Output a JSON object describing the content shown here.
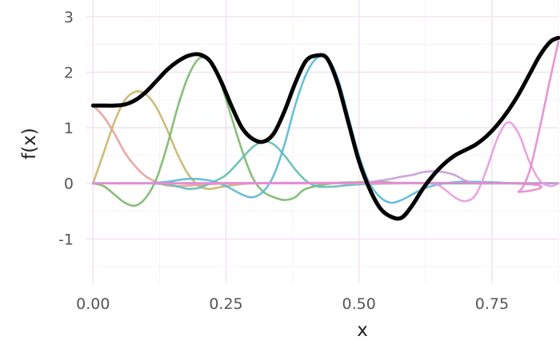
{
  "chart_data": {
    "type": "line",
    "xlabel": "x",
    "ylabel": "f(x)",
    "xlim": [
      -0.0125,
      0.875
    ],
    "ylim": [
      -1.8,
      3.3
    ],
    "x_ticks": [
      0,
      0.25,
      0.5,
      0.75
    ],
    "x_tick_labels": [
      "0.00",
      "0.25",
      "0.50",
      "0.75"
    ],
    "y_ticks": [
      -1,
      0,
      1,
      2,
      3
    ],
    "y_tick_labels": [
      "-1",
      "0",
      "1",
      "2",
      "3"
    ],
    "grid": true,
    "legend": "none",
    "series": [
      {
        "color": "#e8a09a",
        "x": [
          0,
          0.02,
          0.04,
          0.06,
          0.08,
          0.1,
          0.12,
          0.14,
          0.16,
          0.2,
          0.25,
          0.3,
          0.4,
          0.6,
          0.875
        ],
        "y": [
          1.4,
          1.2,
          0.9,
          0.55,
          0.3,
          0.12,
          0.02,
          -0.04,
          -0.05,
          -0.03,
          0.0,
          0.0,
          0.0,
          0.0,
          0.0
        ]
      },
      {
        "color": "#c9b56a",
        "x": [
          0,
          0.02,
          0.04,
          0.06,
          0.08,
          0.1,
          0.12,
          0.14,
          0.16,
          0.18,
          0.2,
          0.22,
          0.25,
          0.3,
          0.4,
          0.875
        ],
        "y": [
          0.0,
          0.55,
          1.1,
          1.5,
          1.65,
          1.6,
          1.35,
          0.95,
          0.5,
          0.15,
          -0.05,
          -0.1,
          -0.05,
          0.0,
          0.0,
          0.0
        ]
      },
      {
        "color": "#7ab86a",
        "x": [
          0,
          0.02,
          0.04,
          0.06,
          0.08,
          0.1,
          0.12,
          0.14,
          0.16,
          0.18,
          0.2,
          0.22,
          0.24,
          0.26,
          0.28,
          0.3,
          0.32,
          0.34,
          0.36,
          0.38,
          0.4,
          0.45,
          0.5,
          0.55,
          0.6,
          0.875
        ],
        "y": [
          0.0,
          -0.05,
          -0.2,
          -0.35,
          -0.4,
          -0.25,
          0.1,
          0.7,
          1.4,
          1.95,
          2.25,
          2.2,
          1.8,
          1.2,
          0.6,
          0.1,
          -0.15,
          -0.25,
          -0.3,
          -0.25,
          -0.1,
          0.0,
          0.02,
          0.02,
          0.0,
          0.0
        ]
      },
      {
        "color": "#5fbfb0",
        "x": [
          0,
          0.1,
          0.14,
          0.16,
          0.18,
          0.2,
          0.22,
          0.25,
          0.28,
          0.3,
          0.32,
          0.34,
          0.36,
          0.38,
          0.4,
          0.42,
          0.45,
          0.5,
          0.6,
          0.875
        ],
        "y": [
          0.0,
          0.0,
          -0.02,
          -0.06,
          -0.1,
          -0.08,
          0.0,
          0.15,
          0.45,
          0.65,
          0.75,
          0.7,
          0.5,
          0.25,
          0.05,
          -0.05,
          -0.06,
          -0.02,
          0.0,
          0.0
        ]
      },
      {
        "color": "#5ab8d6",
        "x": [
          0,
          0.1,
          0.14,
          0.18,
          0.22,
          0.25,
          0.28,
          0.3,
          0.32,
          0.34,
          0.36,
          0.38,
          0.4,
          0.42,
          0.44,
          0.46,
          0.48,
          0.5,
          0.52,
          0.54,
          0.56,
          0.58,
          0.6,
          0.62,
          0.64,
          0.66,
          0.68,
          0.7,
          0.75,
          0.8,
          0.875
        ],
        "y": [
          0.0,
          0.0,
          0.03,
          0.08,
          0.05,
          -0.05,
          -0.2,
          -0.25,
          -0.15,
          0.15,
          0.7,
          1.4,
          1.95,
          2.25,
          2.25,
          1.9,
          1.2,
          0.5,
          0.0,
          -0.25,
          -0.35,
          -0.3,
          -0.2,
          -0.1,
          -0.04,
          0.0,
          0.02,
          0.03,
          0.02,
          0.0,
          0.0
        ]
      },
      {
        "color": "#c89ad8",
        "x": [
          0,
          0.5,
          0.52,
          0.54,
          0.56,
          0.58,
          0.6,
          0.62,
          0.64,
          0.66,
          0.68,
          0.7,
          0.72,
          0.75,
          0.8,
          0.875
        ],
        "y": [
          0.0,
          0.0,
          0.02,
          0.05,
          0.08,
          0.12,
          0.15,
          0.2,
          0.22,
          0.2,
          0.15,
          0.05,
          0.0,
          0.0,
          0.0,
          0.0
        ]
      },
      {
        "color": "#e89adf",
        "x": [
          0,
          0.55,
          0.6,
          0.64,
          0.66,
          0.68,
          0.7,
          0.72,
          0.74,
          0.76,
          0.78,
          0.8,
          0.82,
          0.84,
          0.86,
          0.875
        ],
        "y": [
          0.0,
          0.0,
          0.0,
          0.0,
          -0.1,
          -0.25,
          -0.32,
          -0.2,
          0.25,
          0.8,
          1.1,
          0.9,
          0.4,
          0.05,
          -0.05,
          0.0
        ]
      },
      {
        "color": "#e58ad0",
        "x": [
          0,
          0.78,
          0.8,
          0.82,
          0.84,
          0.86,
          0.875
        ],
        "y": [
          0.0,
          0.0,
          -0.15,
          0.2,
          1.0,
          1.9,
          2.55
        ]
      },
      {
        "color": "#000000",
        "x": [
          0,
          0.02,
          0.04,
          0.06,
          0.08,
          0.1,
          0.12,
          0.14,
          0.16,
          0.18,
          0.2,
          0.22,
          0.24,
          0.26,
          0.28,
          0.3,
          0.32,
          0.34,
          0.36,
          0.38,
          0.4,
          0.42,
          0.44,
          0.46,
          0.48,
          0.5,
          0.52,
          0.54,
          0.56,
          0.58,
          0.6,
          0.62,
          0.64,
          0.66,
          0.68,
          0.7,
          0.72,
          0.74,
          0.76,
          0.78,
          0.8,
          0.82,
          0.84,
          0.86,
          0.875
        ],
        "y": [
          1.4,
          1.4,
          1.4,
          1.42,
          1.5,
          1.65,
          1.85,
          2.05,
          2.2,
          2.3,
          2.32,
          2.2,
          1.85,
          1.4,
          1.0,
          0.8,
          0.75,
          0.9,
          1.3,
          1.8,
          2.2,
          2.3,
          2.25,
          1.8,
          1.1,
          0.4,
          -0.1,
          -0.45,
          -0.6,
          -0.62,
          -0.4,
          -0.1,
          0.15,
          0.35,
          0.5,
          0.6,
          0.7,
          0.85,
          1.05,
          1.3,
          1.6,
          1.95,
          2.3,
          2.55,
          2.62
        ]
      }
    ]
  }
}
